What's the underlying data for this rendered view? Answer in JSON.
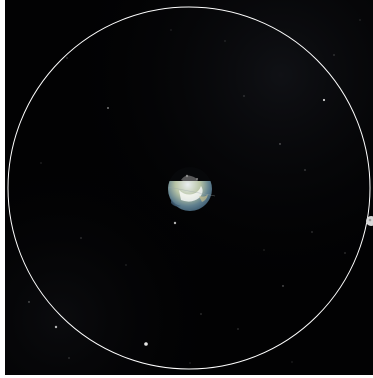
{
  "scene": {
    "background_color": "#020203",
    "orbit_color": "#ffffff",
    "earth_icon": "earth-globe-icon",
    "moon_icon": "moon-icon"
  }
}
